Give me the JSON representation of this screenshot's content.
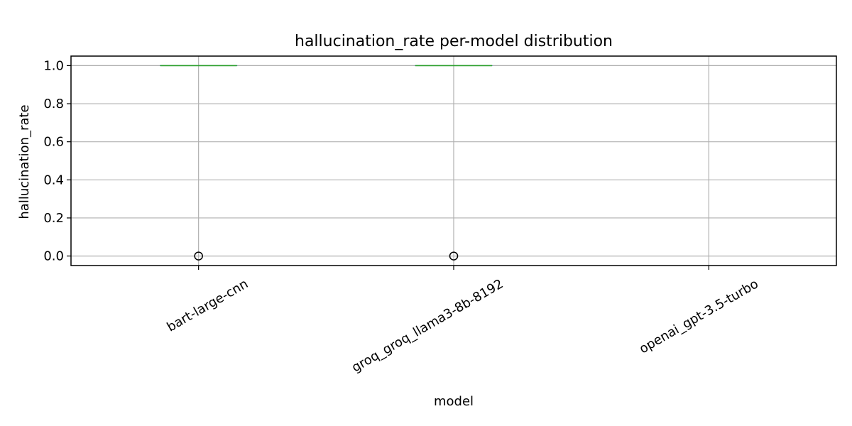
{
  "chart_data": {
    "type": "box",
    "title": "hallucination_rate per-model distribution",
    "xlabel": "model",
    "ylabel": "hallucination_rate",
    "ylim": [
      -0.05,
      1.05
    ],
    "yticks": [
      "0.0",
      "0.2",
      "0.4",
      "0.6",
      "0.8",
      "1.0"
    ],
    "grid": true,
    "categories": [
      "bart-large-cnn",
      "groq_groq_llama3-8b-8192",
      "openai_gpt-3.5-turbo"
    ],
    "boxes": [
      {
        "category": "bart-large-cnn",
        "q1": 1.0,
        "median": 1.0,
        "q3": 1.0,
        "whisker_low": 1.0,
        "whisker_high": 1.0,
        "outliers": [
          0.0
        ]
      },
      {
        "category": "groq_groq_llama3-8b-8192",
        "q1": 1.0,
        "median": 1.0,
        "q3": 1.0,
        "whisker_low": 1.0,
        "whisker_high": 1.0,
        "outliers": [
          0.0
        ]
      },
      {
        "category": "openai_gpt-3.5-turbo",
        "q1": null,
        "median": null,
        "q3": null,
        "whisker_low": null,
        "whisker_high": null,
        "outliers": []
      }
    ],
    "colors": {
      "median": "#2ca02c",
      "box": "#1f77b4",
      "grid": "#b0b0b0",
      "axis": "#000000",
      "outlier": "#000000"
    }
  }
}
